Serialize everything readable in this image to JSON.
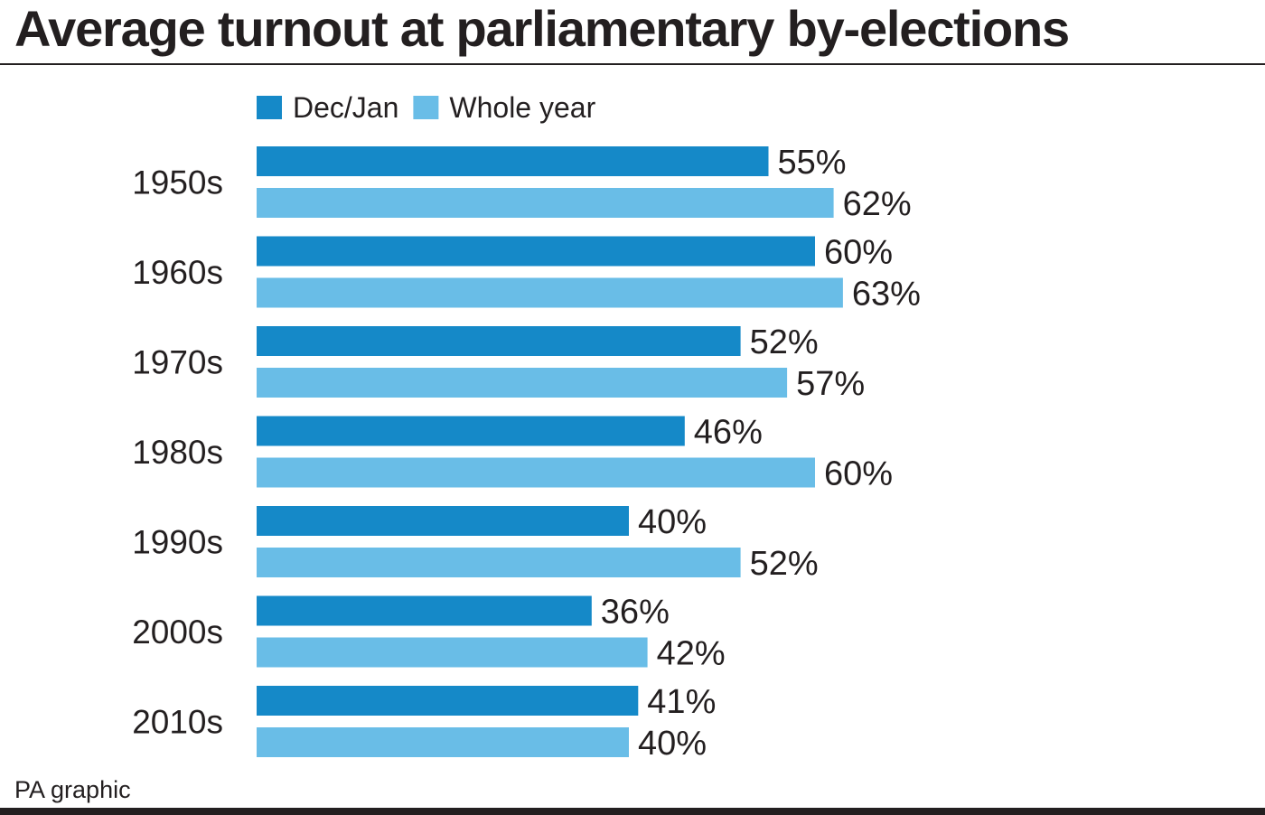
{
  "title": "Average turnout at parliamentary by-elections",
  "source": "PA graphic",
  "colors": {
    "dec_jan": "#1589c8",
    "whole_year": "#69bde7",
    "text": "#231f20"
  },
  "chart_data": {
    "type": "bar",
    "orientation": "horizontal",
    "title": "Average turnout at parliamentary by-elections",
    "categories": [
      "1950s",
      "1960s",
      "1970s",
      "1980s",
      "1990s",
      "2000s",
      "2010s"
    ],
    "series": [
      {
        "name": "Dec/Jan",
        "color": "#1589c8",
        "values": [
          55,
          60,
          52,
          46,
          40,
          36,
          41
        ]
      },
      {
        "name": "Whole year",
        "color": "#69bde7",
        "values": [
          62,
          63,
          57,
          60,
          52,
          42,
          40
        ]
      }
    ],
    "value_suffix": "%",
    "xlim": [
      0,
      100
    ],
    "grid": false,
    "legend": "top-left"
  }
}
